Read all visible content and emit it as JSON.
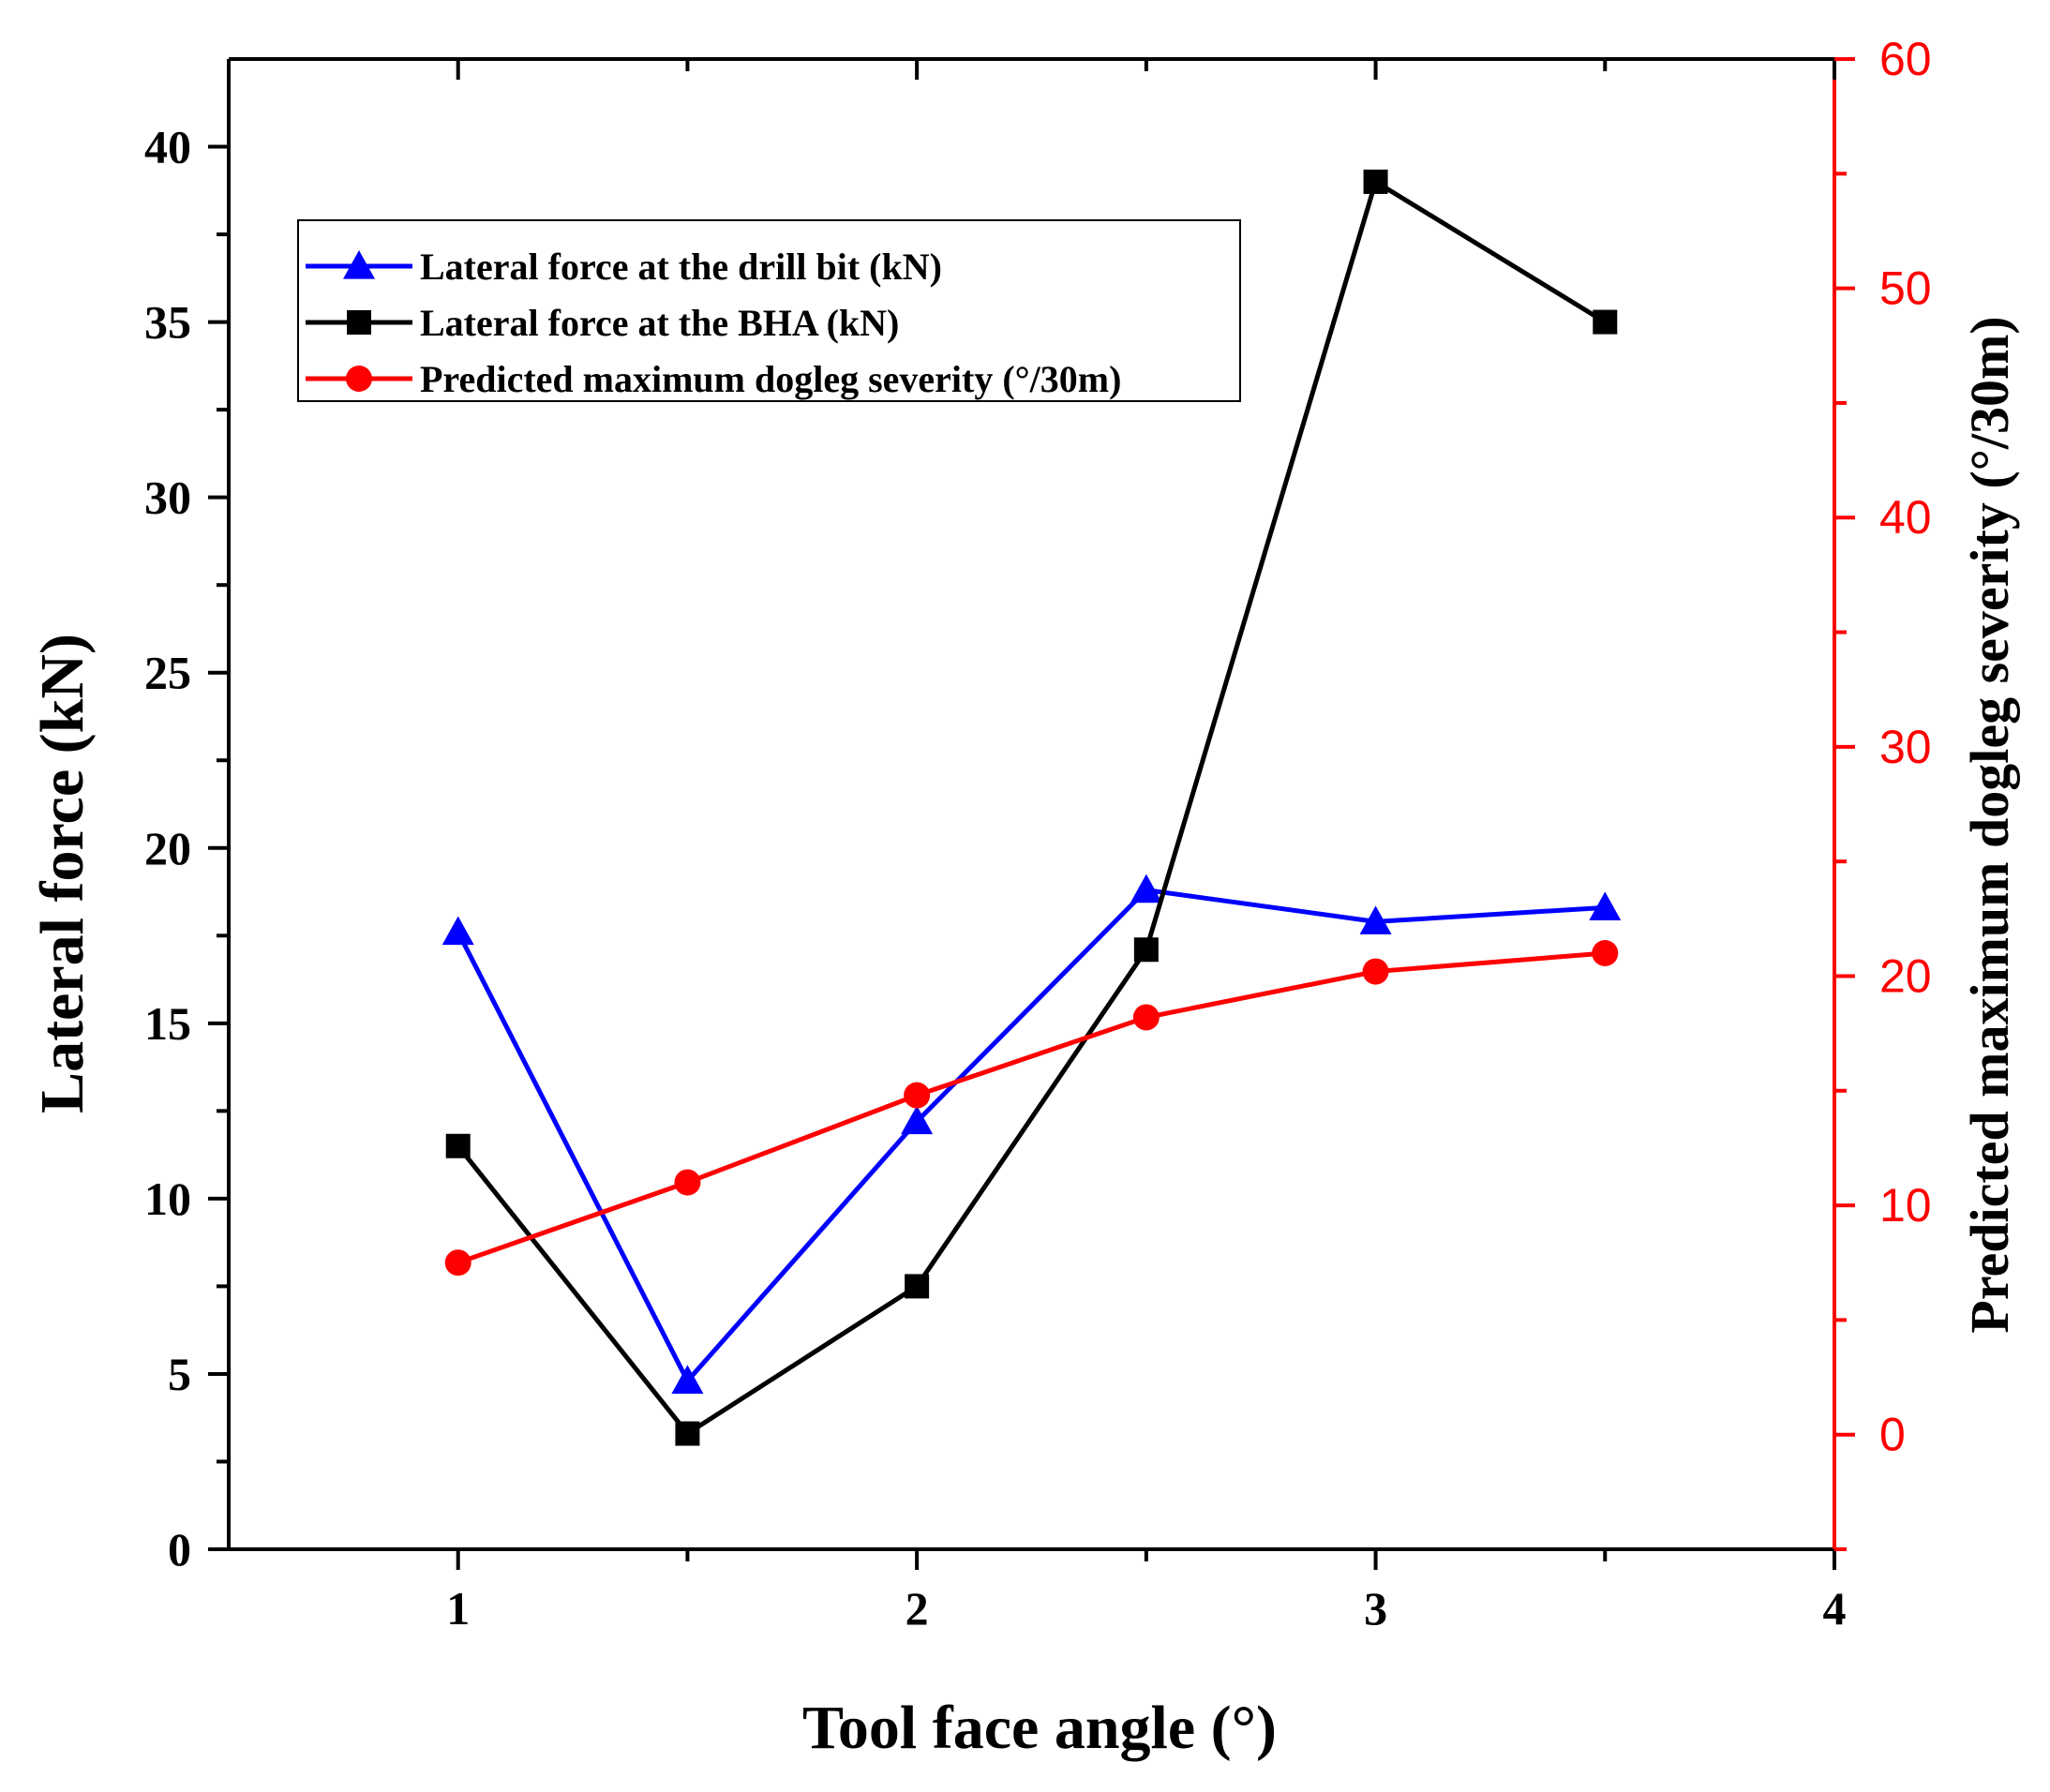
{
  "chart_data": {
    "type": "line",
    "title": "",
    "xlabel": "Tool face angle (°)",
    "ylabel": "Lateral force (kN)",
    "y2label": "Predicted maximum dogleg severity (°/30m)",
    "xlim": [
      0.5,
      4
    ],
    "ylim": [
      0,
      42.5
    ],
    "y2lim": [
      -5,
      60
    ],
    "x_ticks": [
      "1",
      "2",
      "3",
      "4"
    ],
    "y_ticks": [
      "0",
      "5",
      "10",
      "15",
      "20",
      "25",
      "30",
      "35",
      "40"
    ],
    "y2_ticks": [
      "0",
      "10",
      "20",
      "30",
      "40",
      "50",
      "60"
    ],
    "legend_position": "top-left",
    "colors": {
      "drill_bit": "#0000ff",
      "bha": "#000000",
      "dogleg": "#ff0000",
      "right_axis": "#ff0000"
    },
    "series": [
      {
        "name": "Lateral force at the drill bit (kN)",
        "marker": "triangle",
        "axis": "left",
        "x": [
          1,
          1.5,
          2,
          2.5,
          3,
          3.5
        ],
        "values": [
          17.6,
          4.8,
          12.2,
          18.8,
          17.9,
          18.3
        ]
      },
      {
        "name": "Lateral force at the BHA (kN)",
        "marker": "square",
        "axis": "left",
        "x": [
          1,
          1.5,
          2,
          2.5,
          3,
          3.5
        ],
        "values": [
          11.5,
          3.3,
          7.5,
          17.1,
          39.0,
          35.0
        ]
      },
      {
        "name": "Predicted maximum dogleg severity (°/30m)",
        "marker": "circle",
        "axis": "right",
        "x": [
          1,
          1.5,
          2,
          2.5,
          3,
          3.5
        ],
        "values": [
          7.5,
          11.0,
          14.8,
          18.2,
          20.2,
          21.0
        ]
      }
    ]
  }
}
